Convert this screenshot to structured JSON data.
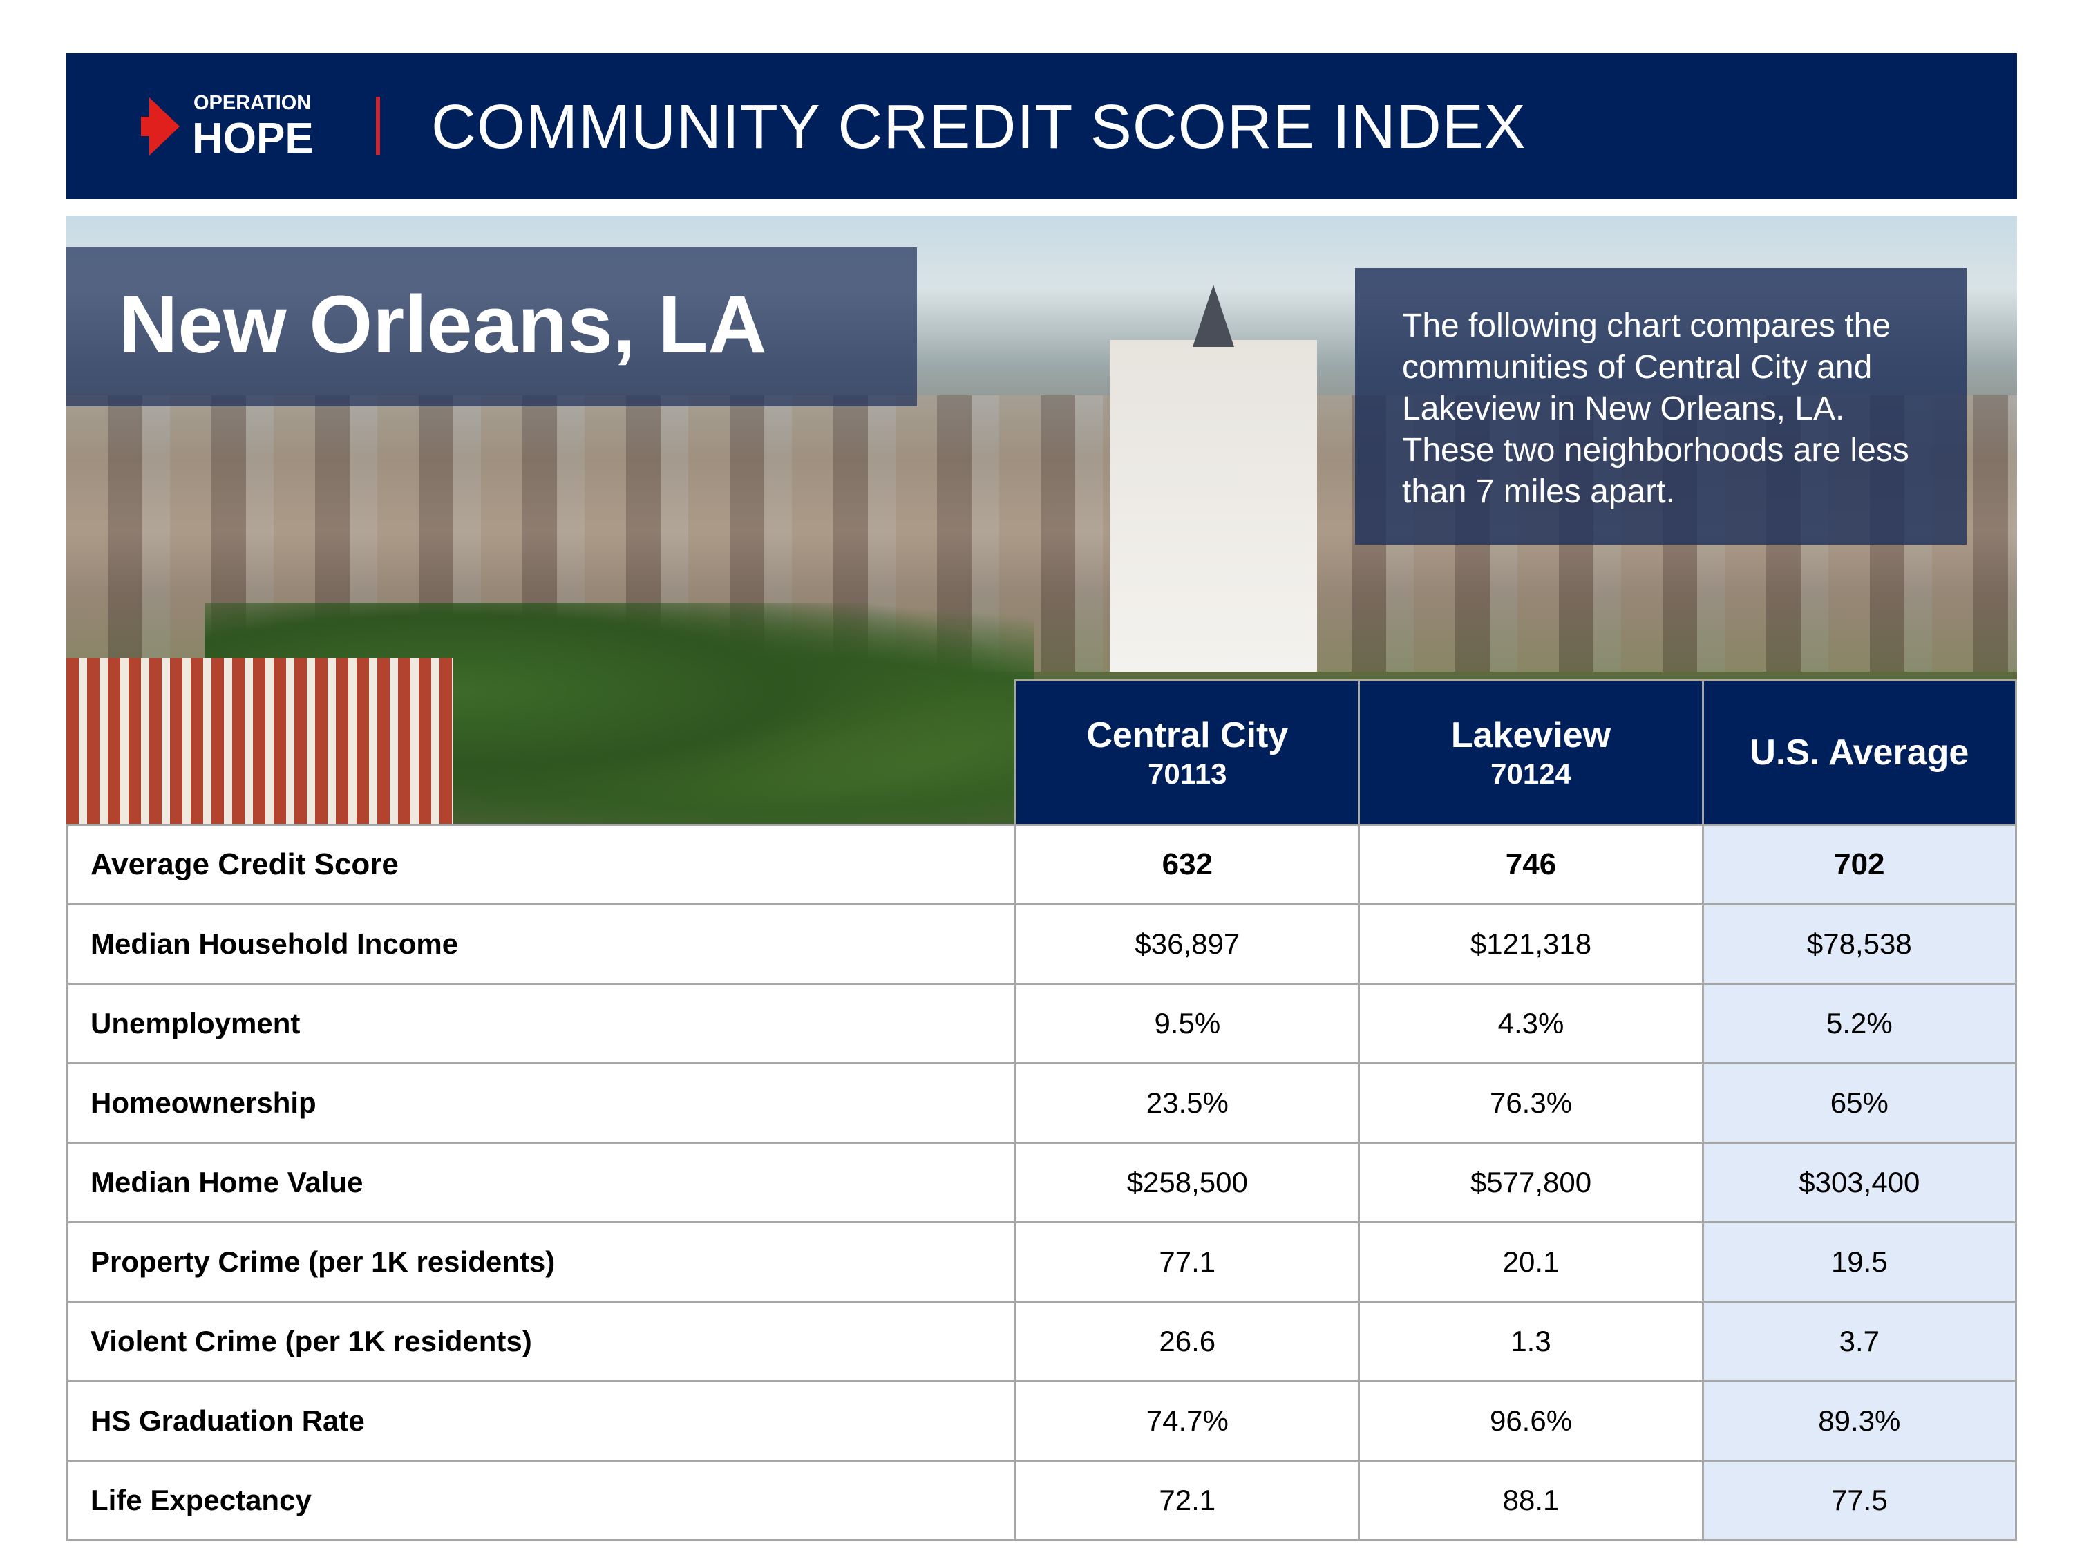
{
  "header": {
    "logo_top": "OPERATION",
    "logo_bottom": "HOPE",
    "title": "COMMUNITY CREDIT SCORE INDEX"
  },
  "colors": {
    "navy": "#00205b",
    "accent_red": "#e0201c",
    "us_column": "#e1eaf8"
  },
  "hero": {
    "city": "New Orleans, LA",
    "description": "The following chart compares the communities of Central City and Lakeview in New Orleans, LA. These two neighborhoods are less than 7 miles apart."
  },
  "table": {
    "columns": [
      {
        "name": "Central City",
        "zip": "70113"
      },
      {
        "name": "Lakeview",
        "zip": "70124"
      },
      {
        "name": "U.S. Average"
      }
    ],
    "rows": [
      {
        "label": "Average Credit Score",
        "values": [
          "632",
          "746",
          "702"
        ]
      },
      {
        "label": "Median Household Income",
        "values": [
          "$36,897",
          "$121,318",
          "$78,538"
        ]
      },
      {
        "label": "Unemployment",
        "values": [
          "9.5%",
          "4.3%",
          "5.2%"
        ]
      },
      {
        "label": "Homeownership",
        "values": [
          "23.5%",
          "76.3%",
          "65%"
        ]
      },
      {
        "label": "Median Home Value",
        "values": [
          "$258,500",
          "$577,800",
          "$303,400"
        ]
      },
      {
        "label": "Property Crime (per 1K residents)",
        "values": [
          "77.1",
          "20.1",
          "19.5"
        ]
      },
      {
        "label": "Violent Crime (per 1K residents)",
        "values": [
          "26.6",
          "1.3",
          "3.7"
        ]
      },
      {
        "label": "HS Graduation Rate",
        "values": [
          "74.7%",
          "96.6%",
          "89.3%"
        ]
      },
      {
        "label": "Life Expectancy",
        "values": [
          "72.1",
          "88.1",
          "77.5"
        ]
      }
    ]
  }
}
